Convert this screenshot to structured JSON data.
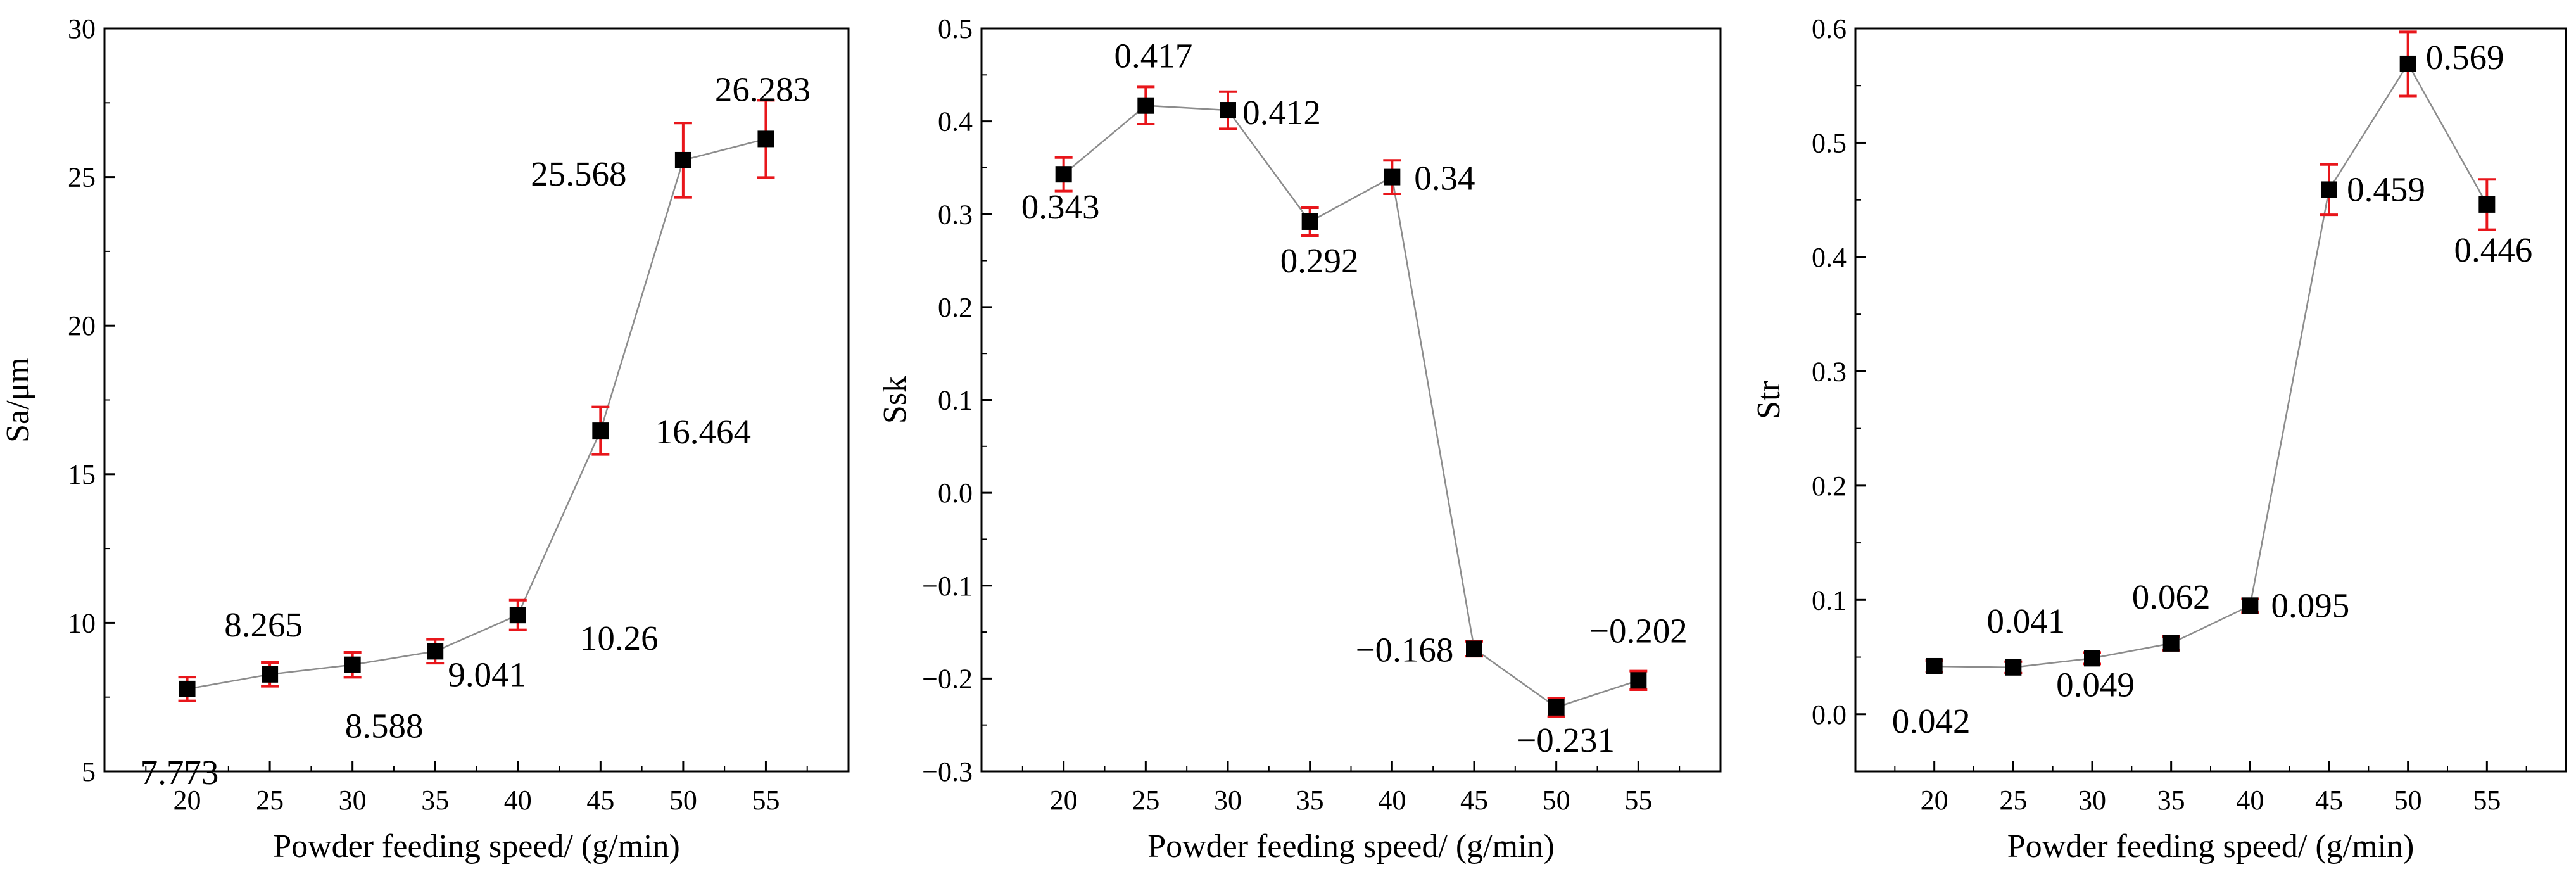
{
  "chart_data": [
    {
      "type": "line",
      "xlabel": "Powder feeding speed/ (g/min)",
      "ylabel": "Sa/μm",
      "x": [
        20,
        25,
        30,
        35,
        40,
        45,
        50,
        55
      ],
      "xlim": [
        15,
        60
      ],
      "ylim": [
        5,
        30
      ],
      "yticks": [
        5,
        10,
        15,
        20,
        25,
        30
      ],
      "series": [
        {
          "values": [
            7.773,
            8.265,
            8.588,
            9.041,
            10.26,
            16.464,
            25.568,
            26.283
          ],
          "error": [
            0.4,
            0.4,
            0.42,
            0.4,
            0.5,
            0.8,
            1.25,
            1.3
          ],
          "labels": [
            "7.773",
            "8.265",
            "8.588",
            "9.041",
            "10.26",
            "16.464",
            "25.568",
            "26.283"
          ]
        }
      ],
      "grid": false,
      "marker_color": "#000000",
      "errorbar_color": "#e8161b",
      "line_color": "#8c8c8c"
    },
    {
      "type": "line",
      "xlabel": "Powder feeding speed/ (g/min)",
      "ylabel": "Ssk",
      "x": [
        20,
        25,
        30,
        35,
        40,
        45,
        50,
        55
      ],
      "xlim": [
        15,
        60
      ],
      "ylim": [
        -0.3,
        0.5
      ],
      "yticks": [
        -0.3,
        -0.2,
        -0.1,
        0.0,
        0.1,
        0.2,
        0.3,
        0.4,
        0.5
      ],
      "series": [
        {
          "values": [
            0.343,
            0.417,
            0.412,
            0.292,
            0.34,
            -0.168,
            -0.231,
            -0.202
          ],
          "error": [
            0.018,
            0.02,
            0.02,
            0.015,
            0.018,
            0.008,
            0.01,
            0.01
          ],
          "labels": [
            "0.343",
            "0.417",
            "0.412",
            "0.292",
            "0.34",
            "−0.168",
            "−0.231",
            "−0.202"
          ]
        }
      ],
      "grid": false,
      "marker_color": "#000000",
      "errorbar_color": "#e8161b",
      "line_color": "#8c8c8c"
    },
    {
      "type": "line",
      "xlabel": "Powder feeding speed/ (g/min)",
      "ylabel": "Str",
      "x": [
        20,
        25,
        30,
        35,
        40,
        45,
        50,
        55
      ],
      "xlim": [
        15,
        60
      ],
      "ylim": [
        -0.05,
        0.6
      ],
      "yticks": [
        0.0,
        0.1,
        0.2,
        0.3,
        0.4,
        0.5,
        0.6
      ],
      "series": [
        {
          "values": [
            0.042,
            0.041,
            0.049,
            0.062,
            0.095,
            0.459,
            0.569,
            0.446
          ],
          "error": [
            0.005,
            0.005,
            0.005,
            0.006,
            0.006,
            0.022,
            0.028,
            0.022
          ],
          "labels": [
            "0.042",
            "0.041",
            "0.049",
            "0.062",
            "0.095",
            "0.459",
            "0.569",
            "0.446"
          ]
        }
      ],
      "grid": false,
      "marker_color": "#000000",
      "errorbar_color": "#e8161b",
      "line_color": "#8c8c8c"
    }
  ]
}
